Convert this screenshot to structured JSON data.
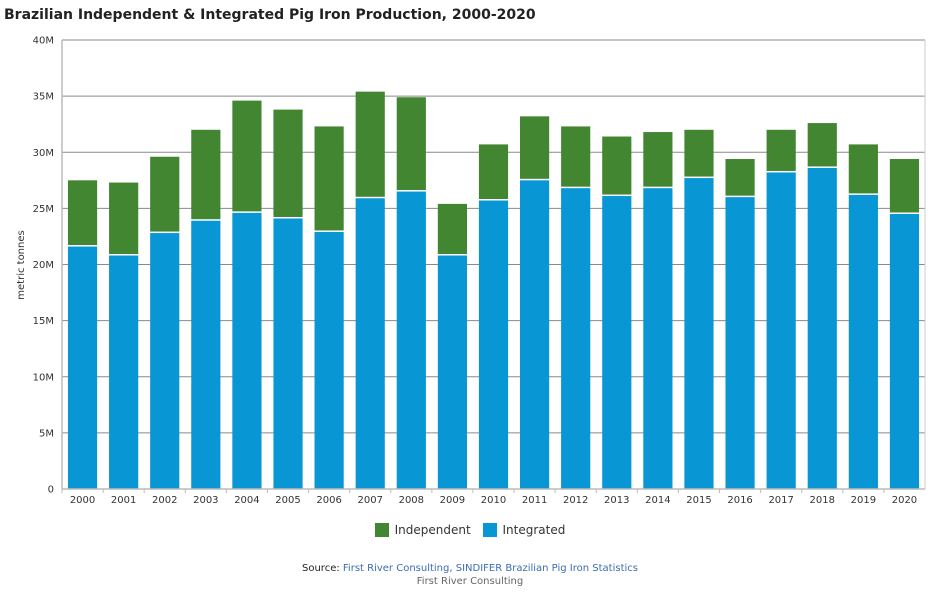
{
  "title": "Brazilian Independent & Integrated Pig Iron Production, 2000-2020",
  "chart_data": {
    "type": "bar",
    "stacked": true,
    "title": "Brazilian Independent & Integrated Pig Iron Production, 2000-2020",
    "xlabel": "",
    "ylabel": "metric tonnes",
    "ylim": [
      0,
      40000000
    ],
    "yticks": [
      0,
      5000000,
      10000000,
      15000000,
      20000000,
      25000000,
      30000000,
      35000000,
      40000000
    ],
    "ytick_labels": [
      "0",
      "5M",
      "10M",
      "15M",
      "20M",
      "25M",
      "30M",
      "35M",
      "40M"
    ],
    "grid": true,
    "legend_position": "bottom",
    "categories": [
      "2000",
      "2001",
      "2002",
      "2003",
      "2004",
      "2005",
      "2006",
      "2007",
      "2008",
      "2009",
      "2010",
      "2011",
      "2012",
      "2013",
      "2014",
      "2015",
      "2016",
      "2017",
      "2018",
      "2019",
      "2020"
    ],
    "series": [
      {
        "name": "Integrated",
        "color": "#0896d4",
        "values": [
          21.6,
          20.8,
          22.8,
          23.9,
          24.6,
          24.1,
          22.9,
          25.9,
          26.5,
          20.8,
          25.7,
          27.5,
          26.8,
          26.1,
          26.8,
          27.7,
          26.0,
          28.2,
          28.6,
          26.2,
          24.5
        ],
        "unit": "million metric tonnes"
      },
      {
        "name": "Independent",
        "color": "#428632",
        "values": [
          5.9,
          6.5,
          6.8,
          8.1,
          10.0,
          9.7,
          9.4,
          9.5,
          8.4,
          4.6,
          5.0,
          5.7,
          5.5,
          5.3,
          5.0,
          4.3,
          3.4,
          3.8,
          4.0,
          4.5,
          4.9
        ],
        "unit": "million metric tonnes"
      }
    ]
  },
  "legend": [
    {
      "label": "Independent",
      "color": "#428632"
    },
    {
      "label": "Integrated",
      "color": "#0896d4"
    }
  ],
  "source": {
    "prefix": "Source: ",
    "link1": "First River Consulting",
    "separator": ", ",
    "link2": "SINDIFER Brazilian Pig Iron Statistics",
    "credit": "First River Consulting"
  }
}
